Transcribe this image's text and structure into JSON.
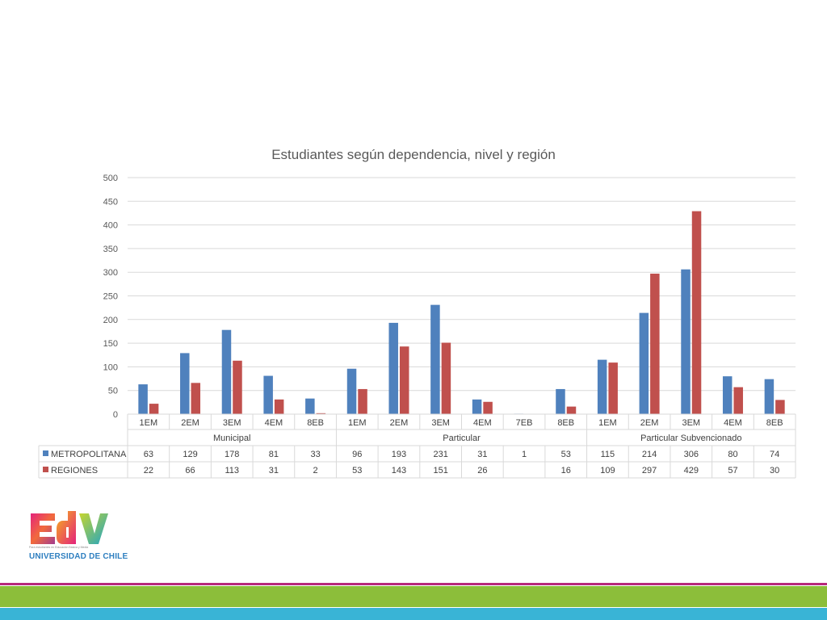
{
  "chart_data": {
    "type": "bar",
    "title": "Estudiantes según dependencia, nivel y región",
    "ylim": [
      0,
      500
    ],
    "yticks": [
      "0",
      "50",
      "100",
      "150",
      "200",
      "250",
      "300",
      "350",
      "400",
      "450",
      "500"
    ],
    "grid": true,
    "legend": "data-table",
    "groups": [
      {
        "name": "Municipal",
        "categories": [
          "1EM",
          "2EM",
          "3EM",
          "4EM",
          "8EB"
        ]
      },
      {
        "name": "Particular",
        "categories": [
          "1EM",
          "2EM",
          "3EM",
          "4EM",
          "7EB",
          "8EB"
        ]
      },
      {
        "name": "Particular Subvencionado",
        "categories": [
          "1EM",
          "2EM",
          "3EM",
          "4EM",
          "8EB"
        ]
      }
    ],
    "series": [
      {
        "name": "METROPOLITANA",
        "color": "#4f81bd",
        "values": [
          63,
          129,
          178,
          81,
          33,
          96,
          193,
          231,
          31,
          1,
          53,
          115,
          214,
          306,
          80,
          74
        ]
      },
      {
        "name": "REGIONES",
        "color": "#c0504d",
        "values": [
          22,
          66,
          113,
          31,
          2,
          53,
          143,
          151,
          26,
          null,
          16,
          109,
          297,
          429,
          57,
          30
        ]
      }
    ]
  },
  "logo": {
    "text": "EdV",
    "subtitle": "Para estudiantes en Educación Básica y Media",
    "university": "UNIVERSIDAD DE CHILE"
  }
}
